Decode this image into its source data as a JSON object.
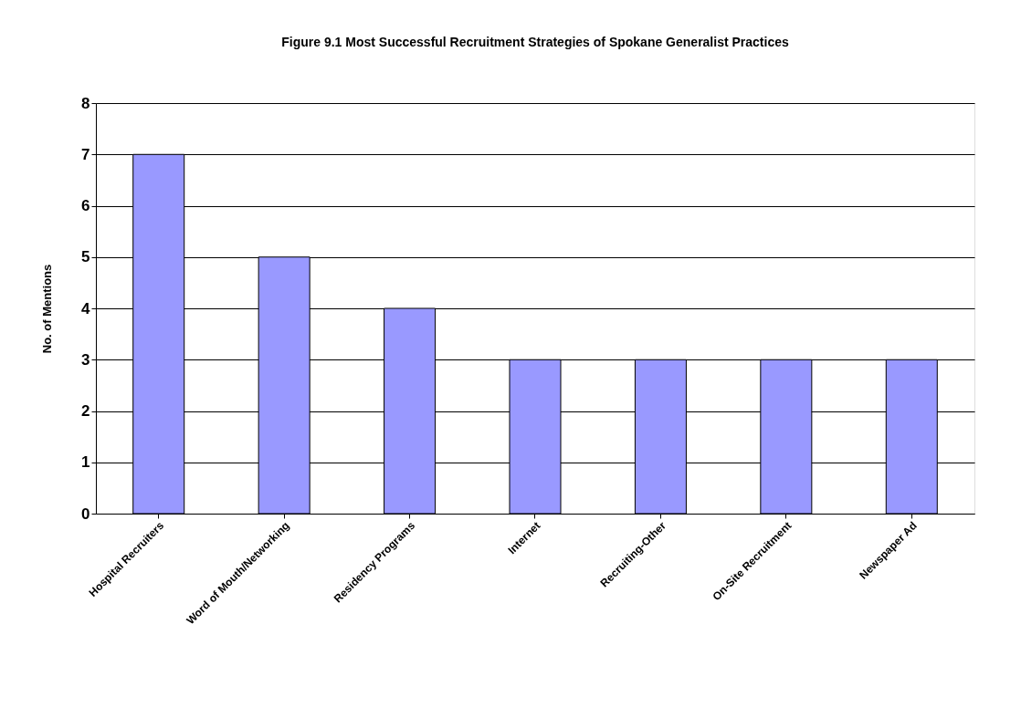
{
  "chart_data": {
    "type": "bar",
    "title": "Figure 9.1 Most Successful Recruitment Strategies of Spokane Generalist Practices",
    "ylabel": "No. of Mentions",
    "categories": [
      "Hospital Recruiters",
      "Word of Mouth/Networking",
      "Residency Programs",
      "Internet",
      "Recruiting-Other",
      "On-Site Recruitment",
      "Newspaper Ad"
    ],
    "values": [
      7,
      5,
      4,
      3,
      3,
      3,
      3
    ],
    "color": "#9999ff",
    "ylim": [
      0,
      8
    ],
    "yticks": [
      0,
      1,
      2,
      3,
      4,
      5,
      6,
      7,
      8
    ],
    "grid": "y"
  }
}
